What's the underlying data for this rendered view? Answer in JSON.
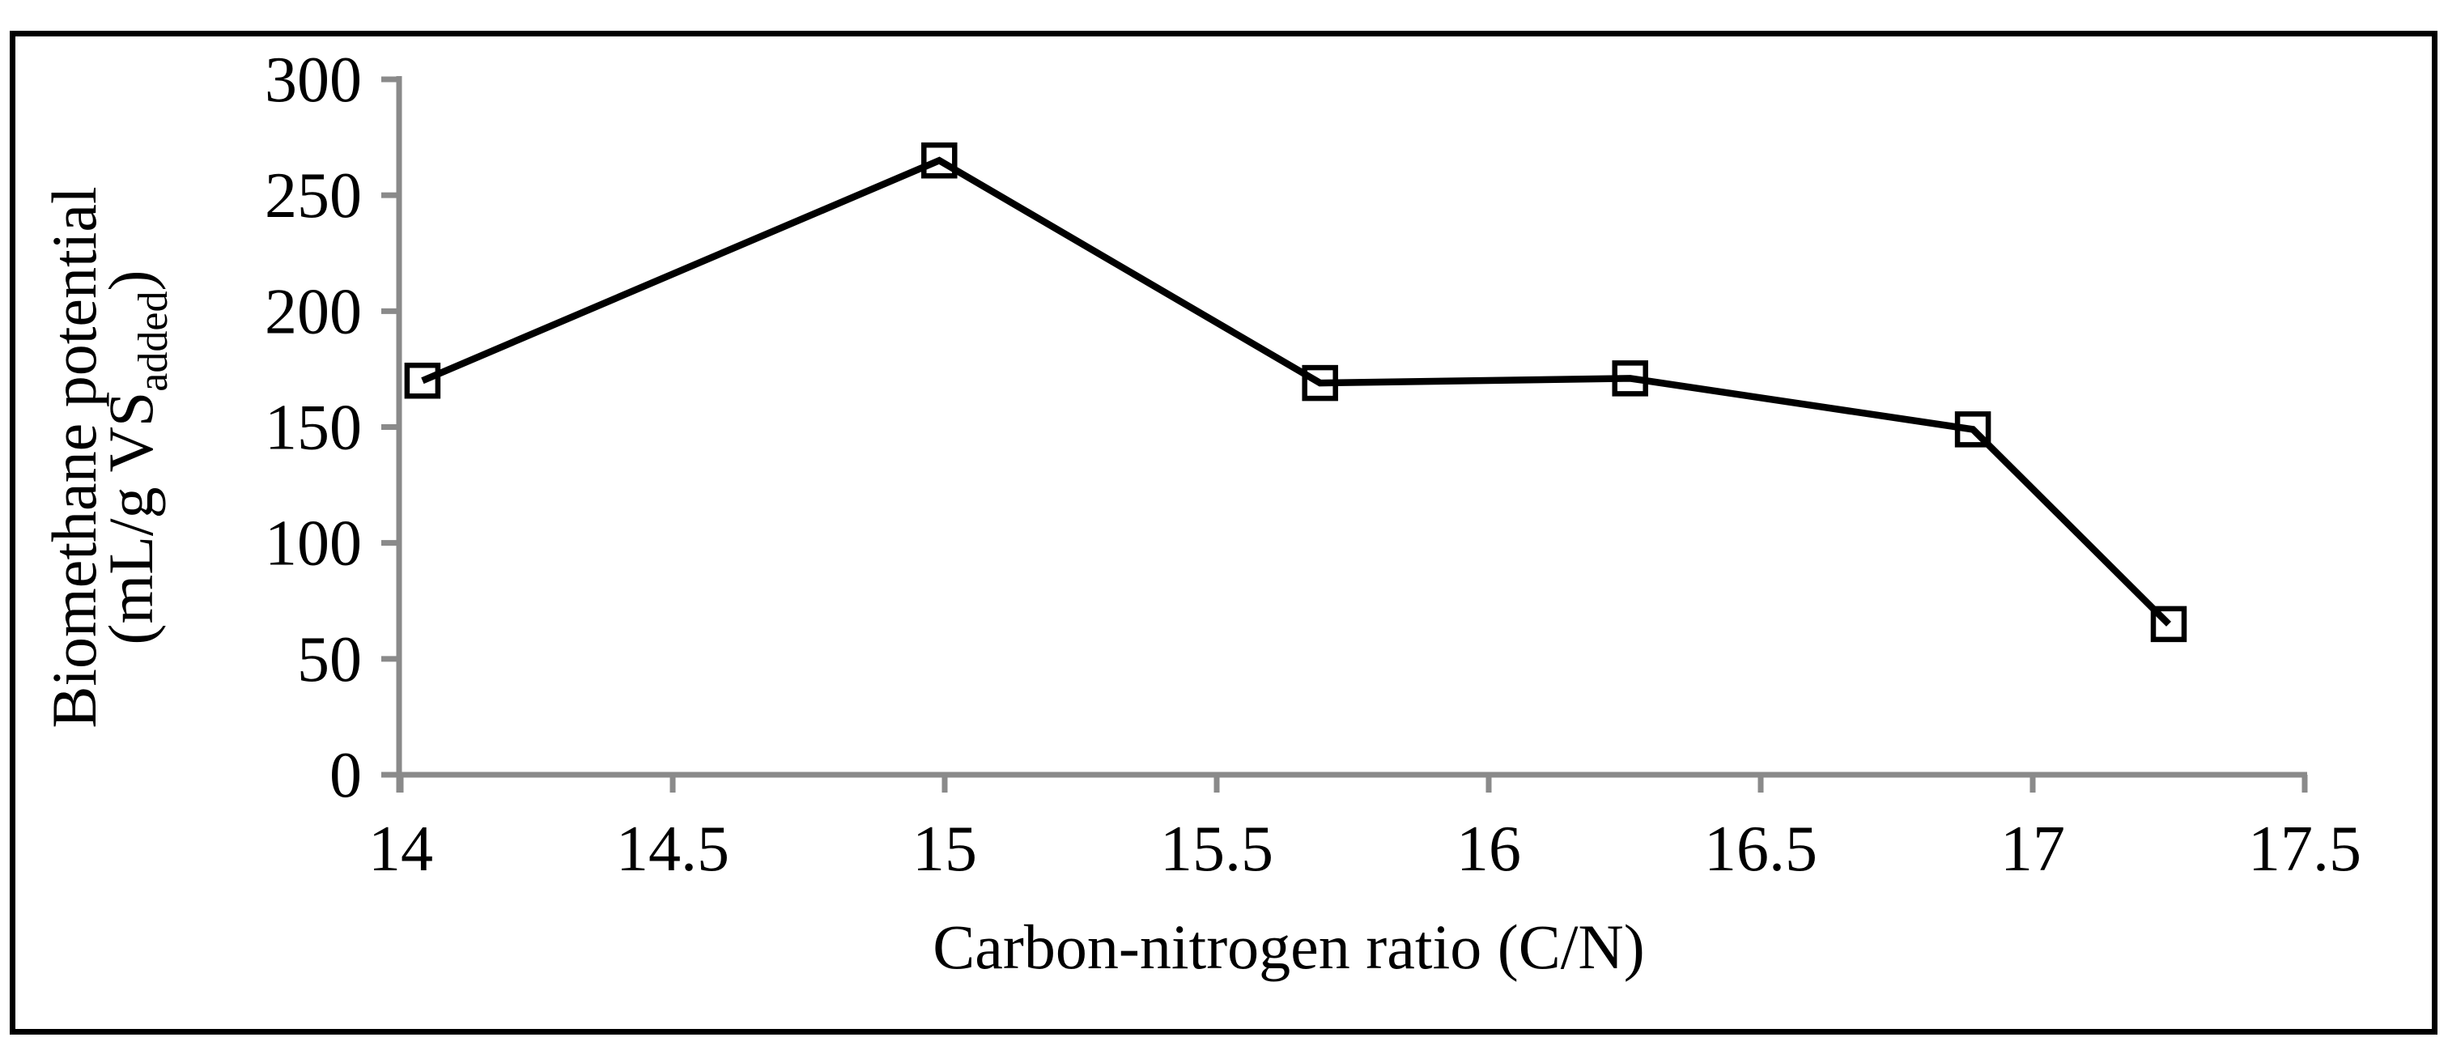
{
  "figure": {
    "background_color": "#ffffff",
    "frame_color": "#000000"
  },
  "chart_data": {
    "type": "line",
    "title": "",
    "xlabel": "Carbon-nitrogen ratio (C/N)",
    "ylabel_line1": "Biomethane potential",
    "ylabel_line2_prefix": "(mL/g VS",
    "ylabel_line2_subscript": "added",
    "ylabel_line2_suffix": ")",
    "series": [
      {
        "name": "Biomethane potential",
        "x": [
          14.04,
          14.99,
          15.69,
          16.26,
          16.89,
          17.25
        ],
        "y": [
          170,
          265,
          169,
          171,
          149,
          65
        ]
      }
    ],
    "xlim": [
      14,
      17.5
    ],
    "ylim": [
      0,
      300
    ],
    "x_ticks": [
      14,
      14.5,
      15,
      15.5,
      16,
      16.5,
      17,
      17.5
    ],
    "y_ticks": [
      0,
      50,
      100,
      150,
      200,
      250,
      300
    ],
    "x_tick_labels": [
      "14",
      "14.5",
      "15",
      "15.5",
      "16",
      "16.5",
      "17",
      "17.5"
    ],
    "y_tick_labels": [
      "0",
      "50",
      "100",
      "150",
      "200",
      "250",
      "300"
    ],
    "grid": false,
    "legend": false,
    "marker": "open-square",
    "marker_fill": "#ffffff",
    "line_color": "#000000",
    "axis_color": "#8a8a8a",
    "text_color": "#000000"
  }
}
